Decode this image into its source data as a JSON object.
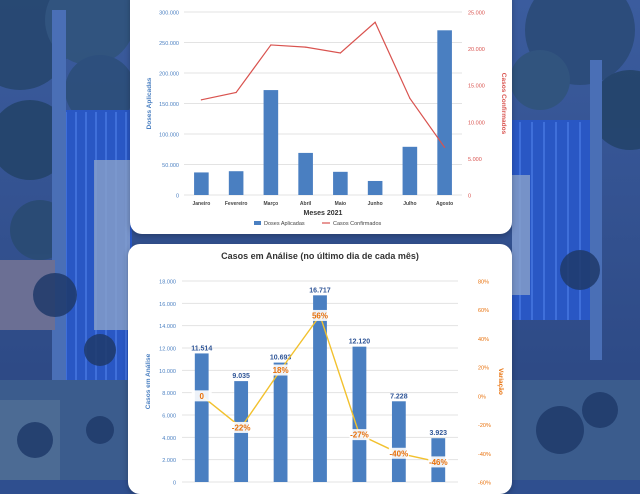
{
  "chart_data": [
    {
      "type": "bar",
      "title": "",
      "xlabel": "Meses 2021",
      "ylabel": "Doses Aplicadas",
      "y2label": "Casos Confirmados",
      "categories": [
        "Janeiro",
        "Fevereiro",
        "Março",
        "Abril",
        "Maio",
        "Junho",
        "Julho",
        "Agosto"
      ],
      "ylim": [
        0,
        300000
      ],
      "yticks": [
        "0",
        "50.000",
        "100.000",
        "150.000",
        "200.000",
        "250.000",
        "300.000"
      ],
      "y2lim": [
        0,
        25000
      ],
      "y2ticks": [
        "0",
        "5.000",
        "10.000",
        "15.000",
        "20.000",
        "25.000"
      ],
      "series": [
        {
          "name": "Doses Aplicadas",
          "kind": "bar",
          "axis": "left",
          "color": "#4a7fc1",
          "values": [
            37000,
            39000,
            172000,
            69000,
            38000,
            23000,
            79000,
            270000
          ]
        },
        {
          "name": "Casos Confirmados",
          "kind": "line",
          "axis": "right",
          "color": "#d9534f",
          "values": [
            13000,
            14000,
            20500,
            20200,
            19400,
            23600,
            13200,
            6500
          ]
        }
      ],
      "legend": "bottom"
    },
    {
      "type": "bar",
      "title": "Casos em Análise (no último dia de cada mês)",
      "ylabel": "Casos em Análise",
      "y2label": "Variação",
      "categories": [
        "",
        "",
        "",
        "",
        "",
        "",
        ""
      ],
      "ylim": [
        0,
        18000
      ],
      "yticks": [
        "0",
        "2.000",
        "4.000",
        "6.000",
        "8.000",
        "10.000",
        "12.000",
        "14.000",
        "16.000",
        "18.000"
      ],
      "y2lim": [
        -60,
        80
      ],
      "y2ticks": [
        "-60%",
        "-40%",
        "-20%",
        "0%",
        "20%",
        "40%",
        "60%",
        "80%"
      ],
      "series": [
        {
          "name": "Casos em Análise",
          "kind": "bar",
          "axis": "left",
          "color": "#4a7fc1",
          "values": [
            11514,
            9035,
            10693,
            16717,
            12120,
            7228,
            3923
          ],
          "labels": [
            "11.514",
            "9.035",
            "10.693",
            "16.717",
            "12.120",
            "7.228",
            "3.923"
          ]
        },
        {
          "name": "Variação",
          "kind": "line",
          "axis": "right",
          "color": "#f2c12e",
          "values": [
            0,
            -22,
            18,
            56,
            -27,
            -40,
            -46
          ],
          "labels": [
            "0",
            "-22%",
            "18%",
            "56%",
            "-27%",
            "-40%",
            "-46%"
          ]
        }
      ],
      "label_color": "#e8700a"
    }
  ]
}
